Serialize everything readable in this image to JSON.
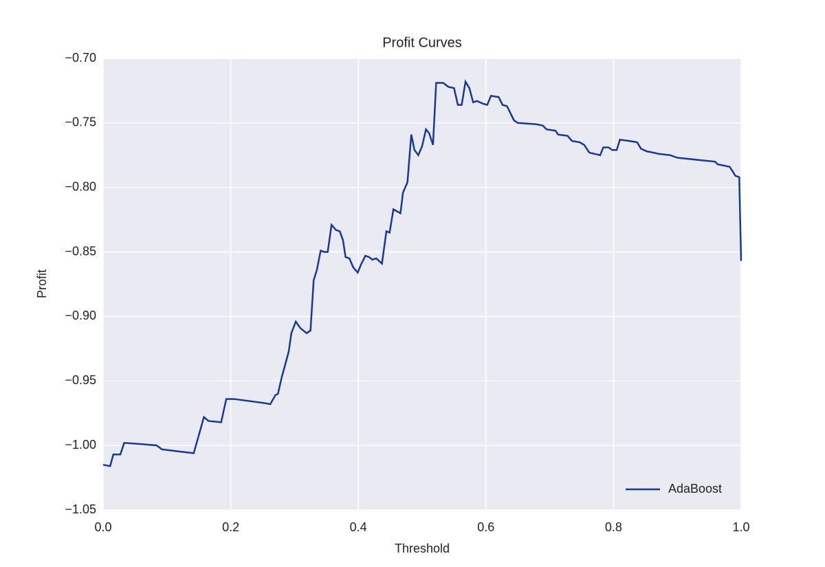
{
  "chart_data": {
    "type": "line",
    "title": "Profit Curves",
    "x_label": "Threshold",
    "y_label": "Profit",
    "x": [
      0.0,
      0.011,
      0.016,
      0.027,
      0.033,
      0.06,
      0.084,
      0.092,
      0.108,
      0.142,
      0.158,
      0.165,
      0.185,
      0.193,
      0.205,
      0.251,
      0.262,
      0.27,
      0.274,
      0.28,
      0.285,
      0.291,
      0.295,
      0.302,
      0.309,
      0.319,
      0.325,
      0.33,
      0.335,
      0.341,
      0.347,
      0.352,
      0.358,
      0.365,
      0.371,
      0.376,
      0.38,
      0.386,
      0.392,
      0.399,
      0.404,
      0.411,
      0.417,
      0.422,
      0.428,
      0.437,
      0.444,
      0.449,
      0.455,
      0.466,
      0.47,
      0.477,
      0.483,
      0.488,
      0.494,
      0.5,
      0.506,
      0.511,
      0.517,
      0.522,
      0.533,
      0.541,
      0.55,
      0.556,
      0.562,
      0.568,
      0.574,
      0.58,
      0.586,
      0.595,
      0.602,
      0.608,
      0.62,
      0.626,
      0.633,
      0.638,
      0.644,
      0.65,
      0.679,
      0.689,
      0.695,
      0.709,
      0.713,
      0.728,
      0.735,
      0.747,
      0.754,
      0.762,
      0.779,
      0.784,
      0.792,
      0.798,
      0.805,
      0.81,
      0.825,
      0.837,
      0.843,
      0.852,
      0.862,
      0.871,
      0.889,
      0.9,
      0.959,
      0.963,
      0.982,
      0.986,
      0.991,
      0.997,
      1.0
    ],
    "series": [
      {
        "name": "AdaBoost",
        "color": "#16389c",
        "values": [
          -1.015,
          -1.016,
          -1.007,
          -1.007,
          -0.998,
          -0.999,
          -1.0,
          -1.003,
          -1.004,
          -1.006,
          -0.978,
          -0.981,
          -0.982,
          -0.964,
          -0.964,
          -0.967,
          -0.968,
          -0.961,
          -0.96,
          -0.947,
          -0.938,
          -0.927,
          -0.913,
          -0.904,
          -0.909,
          -0.913,
          -0.911,
          -0.872,
          -0.864,
          -0.849,
          -0.85,
          -0.85,
          -0.829,
          -0.833,
          -0.834,
          -0.841,
          -0.854,
          -0.855,
          -0.862,
          -0.866,
          -0.86,
          -0.853,
          -0.854,
          -0.856,
          -0.855,
          -0.859,
          -0.834,
          -0.835,
          -0.817,
          -0.82,
          -0.804,
          -0.796,
          -0.759,
          -0.771,
          -0.775,
          -0.768,
          -0.755,
          -0.758,
          -0.767,
          -0.719,
          -0.719,
          -0.722,
          -0.723,
          -0.736,
          -0.736,
          -0.718,
          -0.723,
          -0.734,
          -0.733,
          -0.735,
          -0.736,
          -0.729,
          -0.73,
          -0.736,
          -0.737,
          -0.742,
          -0.748,
          -0.75,
          -0.751,
          -0.752,
          -0.755,
          -0.756,
          -0.759,
          -0.76,
          -0.764,
          -0.765,
          -0.767,
          -0.773,
          -0.775,
          -0.769,
          -0.769,
          -0.771,
          -0.771,
          -0.763,
          -0.764,
          -0.765,
          -0.77,
          -0.772,
          -0.773,
          -0.774,
          -0.775,
          -0.777,
          -0.78,
          -0.782,
          -0.784,
          -0.787,
          -0.791,
          -0.792,
          -0.857
        ]
      }
    ],
    "xlim": [
      0,
      1
    ],
    "ylim": [
      -1.05,
      -0.7
    ],
    "xticks": [
      {
        "value": 0,
        "label": "0.0"
      },
      0.2,
      0.4,
      0.6,
      0.8,
      {
        "value": 1,
        "label": "1.0"
      }
    ],
    "yticks": [
      {
        "value": -1.05,
        "label": "−1.05"
      },
      {
        "value": -1.0,
        "label": "−1.00"
      },
      {
        "value": -0.95,
        "label": "−0.95"
      },
      {
        "value": -0.9,
        "label": "−0.90"
      },
      {
        "value": -0.85,
        "label": "−0.85"
      },
      {
        "value": -0.8,
        "label": "−0.80"
      },
      {
        "value": -0.75,
        "label": "−0.75"
      },
      {
        "value": -0.7,
        "label": "−0.70"
      }
    ],
    "grid": true,
    "legend": "lower right"
  }
}
